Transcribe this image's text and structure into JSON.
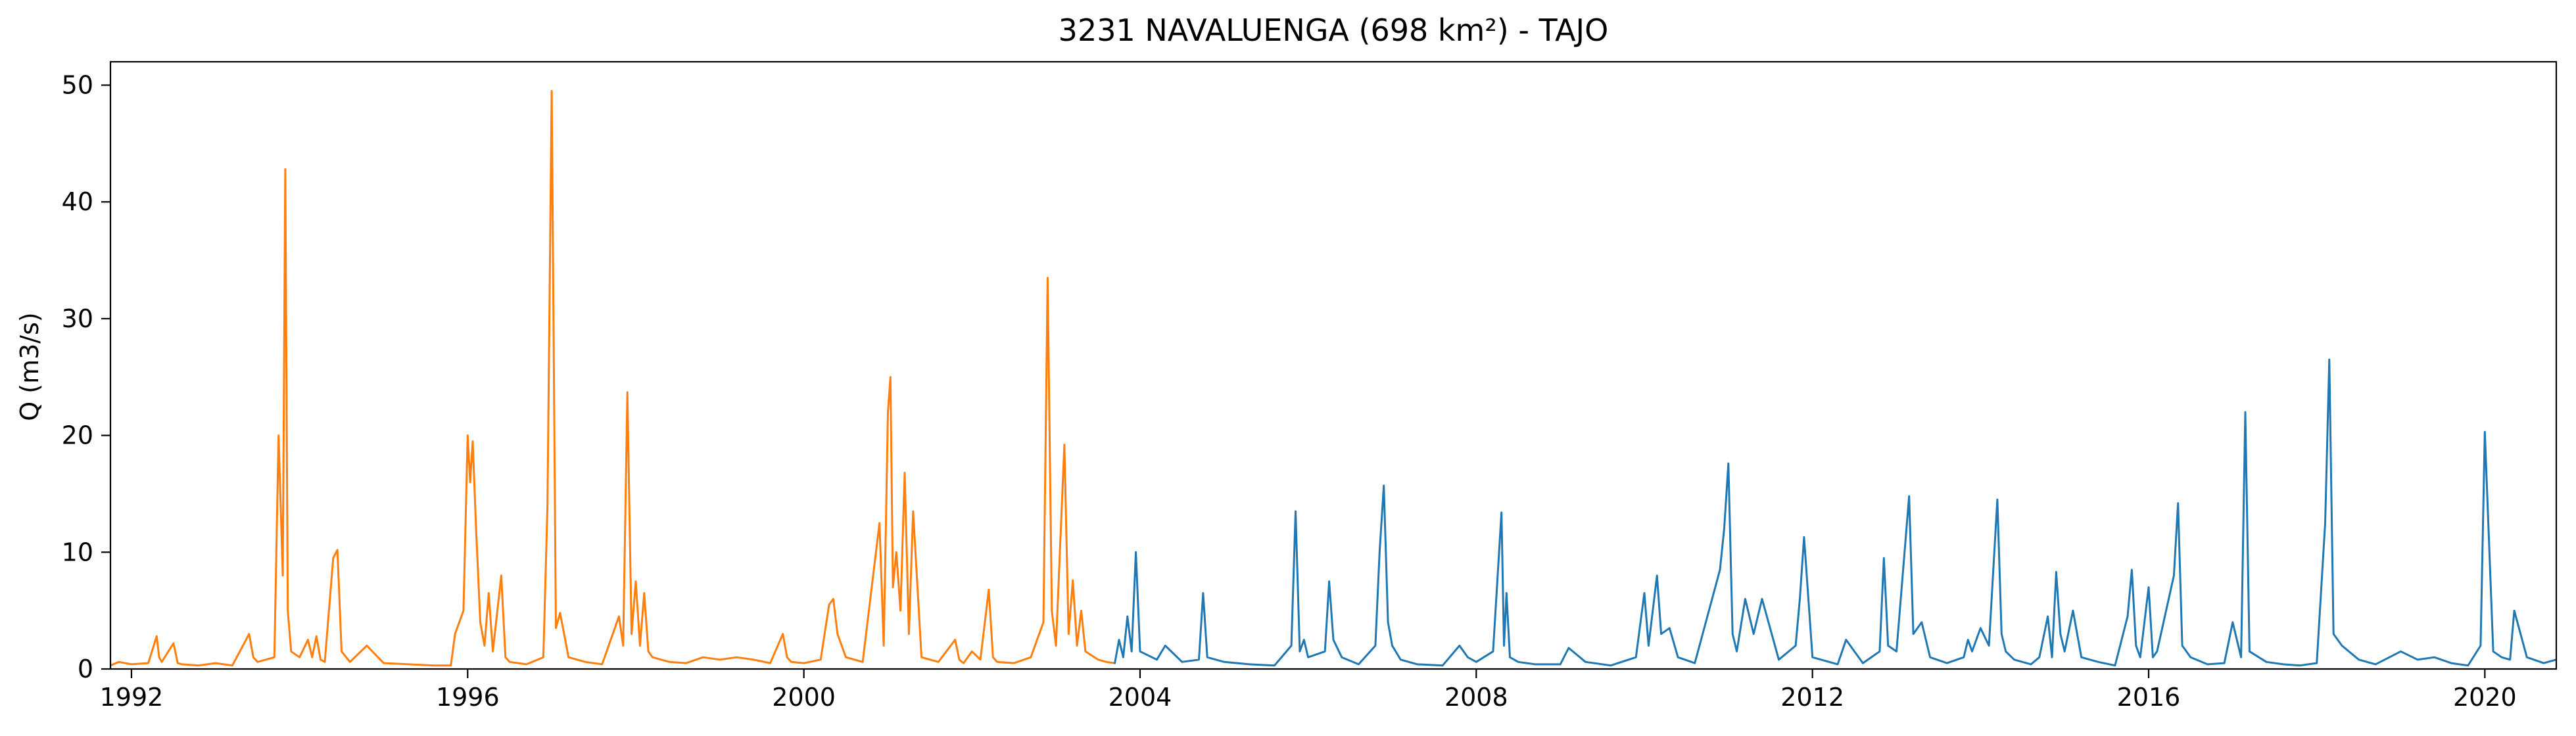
{
  "chart_data": {
    "type": "line",
    "title": "3231 NAVALUENGA (698 km²) - TAJO",
    "xlabel": "",
    "ylabel": "Q (m3/s)",
    "xlim": [
      1991.75,
      2020.85
    ],
    "ylim": [
      0,
      52
    ],
    "grid": false,
    "legend": "none",
    "x_ticks": [
      1992,
      1996,
      2000,
      2004,
      2008,
      2012,
      2016,
      2020
    ],
    "y_ticks": [
      0,
      10,
      20,
      30,
      40,
      50
    ],
    "series": [
      {
        "color": "#ff7f0e",
        "x": [
          1991.75,
          1991.85,
          1992.0,
          1992.2,
          1992.3,
          1992.33,
          1992.36,
          1992.5,
          1992.55,
          1992.6,
          1992.8,
          1993.0,
          1993.2,
          1993.4,
          1993.45,
          1993.5,
          1993.7,
          1993.75,
          1993.8,
          1993.83,
          1993.86,
          1993.9,
          1994.0,
          1994.1,
          1994.15,
          1994.2,
          1994.25,
          1994.3,
          1994.4,
          1994.45,
          1994.5,
          1994.6,
          1994.8,
          1995.0,
          1995.3,
          1995.6,
          1995.8,
          1995.85,
          1995.95,
          1996.0,
          1996.03,
          1996.06,
          1996.1,
          1996.15,
          1996.2,
          1996.25,
          1996.3,
          1996.4,
          1996.45,
          1996.5,
          1996.7,
          1996.9,
          1996.95,
          1997.0,
          1997.05,
          1997.1,
          1997.2,
          1997.4,
          1997.6,
          1997.8,
          1997.85,
          1997.9,
          1997.95,
          1998.0,
          1998.05,
          1998.1,
          1998.15,
          1998.2,
          1998.4,
          1998.6,
          1998.8,
          1999.0,
          1999.2,
          1999.4,
          1999.6,
          1999.75,
          1999.8,
          1999.85,
          2000.0,
          2000.2,
          2000.3,
          2000.35,
          2000.4,
          2000.5,
          2000.7,
          2000.9,
          2000.95,
          2001.0,
          2001.03,
          2001.06,
          2001.1,
          2001.15,
          2001.2,
          2001.25,
          2001.3,
          2001.4,
          2001.6,
          2001.8,
          2001.85,
          2001.9,
          2002.0,
          2002.1,
          2002.2,
          2002.25,
          2002.3,
          2002.5,
          2002.7,
          2002.85,
          2002.9,
          2002.95,
          2003.0,
          2003.1,
          2003.15,
          2003.2,
          2003.25,
          2003.3,
          2003.35,
          2003.5,
          2003.6,
          2003.7
        ],
        "y": [
          0.3,
          0.6,
          0.4,
          0.5,
          2.8,
          1.0,
          0.6,
          2.2,
          0.5,
          0.4,
          0.3,
          0.5,
          0.3,
          3.0,
          1.0,
          0.6,
          1.0,
          20.0,
          8.0,
          42.8,
          5.0,
          1.5,
          1.0,
          2.5,
          1.0,
          2.8,
          0.8,
          0.6,
          9.5,
          10.2,
          1.5,
          0.6,
          2.0,
          0.5,
          0.4,
          0.3,
          0.3,
          3.0,
          5.0,
          20.0,
          16.0,
          19.5,
          12.0,
          4.0,
          2.0,
          6.5,
          1.5,
          8.0,
          1.0,
          0.6,
          0.4,
          1.0,
          14.0,
          49.5,
          3.5,
          4.8,
          1.0,
          0.6,
          0.4,
          4.5,
          2.0,
          23.7,
          3.0,
          7.5,
          2.0,
          6.5,
          1.5,
          1.0,
          0.6,
          0.5,
          1.0,
          0.8,
          1.0,
          0.8,
          0.5,
          3.0,
          1.0,
          0.6,
          0.5,
          0.8,
          5.5,
          6.0,
          3.0,
          1.0,
          0.6,
          12.5,
          2.0,
          22.0,
          25.0,
          7.0,
          10.0,
          5.0,
          16.8,
          3.0,
          13.5,
          1.0,
          0.6,
          2.5,
          0.8,
          0.5,
          1.5,
          0.8,
          6.8,
          1.0,
          0.6,
          0.5,
          1.0,
          4.0,
          33.5,
          5.0,
          2.0,
          19.2,
          3.0,
          7.6,
          2.0,
          5.0,
          1.5,
          0.8,
          0.6,
          0.5
        ]
      },
      {
        "color": "#1f77b4",
        "x": [
          2003.7,
          2003.75,
          2003.8,
          2003.85,
          2003.9,
          2003.95,
          2004.0,
          2004.2,
          2004.3,
          2004.5,
          2004.7,
          2004.75,
          2004.8,
          2005.0,
          2005.3,
          2005.6,
          2005.8,
          2005.85,
          2005.9,
          2005.95,
          2006.0,
          2006.2,
          2006.25,
          2006.3,
          2006.4,
          2006.6,
          2006.8,
          2006.85,
          2006.9,
          2006.95,
          2007.0,
          2007.1,
          2007.3,
          2007.6,
          2007.8,
          2007.9,
          2008.0,
          2008.2,
          2008.3,
          2008.33,
          2008.36,
          2008.4,
          2008.5,
          2008.7,
          2009.0,
          2009.1,
          2009.3,
          2009.6,
          2009.9,
          2010.0,
          2010.05,
          2010.15,
          2010.2,
          2010.3,
          2010.4,
          2010.6,
          2010.9,
          2010.95,
          2011.0,
          2011.05,
          2011.1,
          2011.2,
          2011.3,
          2011.4,
          2011.6,
          2011.8,
          2011.85,
          2011.9,
          2012.0,
          2012.3,
          2012.4,
          2012.6,
          2012.8,
          2012.85,
          2012.9,
          2013.0,
          2013.15,
          2013.2,
          2013.3,
          2013.4,
          2013.6,
          2013.8,
          2013.85,
          2013.9,
          2014.0,
          2014.1,
          2014.2,
          2014.25,
          2014.3,
          2014.4,
          2014.6,
          2014.7,
          2014.8,
          2014.85,
          2014.9,
          2014.95,
          2015.0,
          2015.1,
          2015.2,
          2015.4,
          2015.6,
          2015.75,
          2015.8,
          2015.85,
          2015.9,
          2016.0,
          2016.05,
          2016.1,
          2016.3,
          2016.35,
          2016.4,
          2016.5,
          2016.7,
          2016.9,
          2017.0,
          2017.1,
          2017.15,
          2017.2,
          2017.4,
          2017.6,
          2017.8,
          2018.0,
          2018.1,
          2018.15,
          2018.2,
          2018.3,
          2018.5,
          2018.7,
          2019.0,
          2019.2,
          2019.4,
          2019.6,
          2019.8,
          2019.95,
          2020.0,
          2020.1,
          2020.2,
          2020.3,
          2020.35,
          2020.5,
          2020.7,
          2020.85
        ],
        "y": [
          0.5,
          2.5,
          1.0,
          4.5,
          1.5,
          10.0,
          1.5,
          0.8,
          2.0,
          0.6,
          0.8,
          6.5,
          1.0,
          0.6,
          0.4,
          0.3,
          2.0,
          13.5,
          1.5,
          2.5,
          1.0,
          1.5,
          7.5,
          2.5,
          1.0,
          0.4,
          2.0,
          10.0,
          15.7,
          4.0,
          2.0,
          0.8,
          0.4,
          0.3,
          2.0,
          1.0,
          0.6,
          1.5,
          13.4,
          2.0,
          6.5,
          1.0,
          0.6,
          0.4,
          0.4,
          1.8,
          0.6,
          0.3,
          1.0,
          6.5,
          2.0,
          8.0,
          3.0,
          3.5,
          1.0,
          0.5,
          8.5,
          12.0,
          17.6,
          3.0,
          1.5,
          6.0,
          3.0,
          6.0,
          0.8,
          2.0,
          6.0,
          11.3,
          1.0,
          0.4,
          2.5,
          0.5,
          1.5,
          9.5,
          2.0,
          1.5,
          14.8,
          3.0,
          4.0,
          1.0,
          0.5,
          1.0,
          2.5,
          1.5,
          3.5,
          2.0,
          14.5,
          3.0,
          1.5,
          0.8,
          0.4,
          1.0,
          4.5,
          1.0,
          8.3,
          3.0,
          1.5,
          5.0,
          1.0,
          0.6,
          0.3,
          4.5,
          8.5,
          2.0,
          1.0,
          7.0,
          1.0,
          1.5,
          8.0,
          14.2,
          2.0,
          1.0,
          0.4,
          0.5,
          4.0,
          1.0,
          22.0,
          1.5,
          0.6,
          0.4,
          0.3,
          0.5,
          12.5,
          26.5,
          3.0,
          2.0,
          0.8,
          0.4,
          1.5,
          0.8,
          1.0,
          0.5,
          0.3,
          2.0,
          20.3,
          1.5,
          1.0,
          0.8,
          5.0,
          1.0,
          0.5,
          0.8
        ]
      }
    ]
  }
}
